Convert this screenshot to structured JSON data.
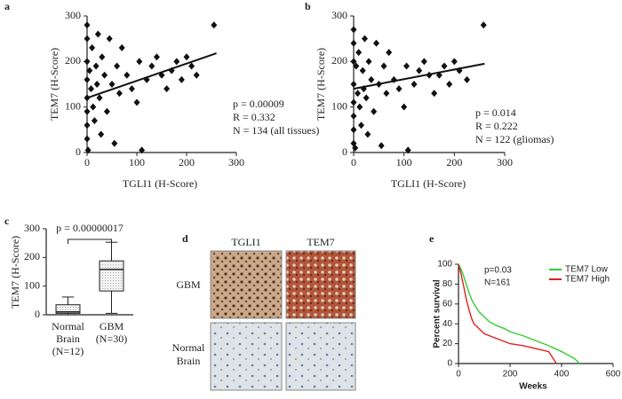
{
  "chart_data": [
    {
      "type": "scatter",
      "label": "a",
      "xlabel": "TGLI1 (H-Score)",
      "ylabel": "TEM7 (H-Score)",
      "xlim": [
        0,
        300
      ],
      "ylim": [
        0,
        300
      ],
      "xticks": [
        0,
        100,
        200,
        300
      ],
      "yticks": [
        0,
        100,
        200,
        300
      ],
      "annotations": [
        "p = 0.00009",
        "R = 0.332",
        "N = 134 (all tissues)"
      ],
      "x": [
        0,
        0,
        0,
        0,
        0,
        0,
        0,
        0,
        2,
        5,
        8,
        10,
        12,
        15,
        18,
        20,
        22,
        25,
        28,
        30,
        35,
        40,
        45,
        50,
        55,
        60,
        65,
        70,
        80,
        90,
        100,
        105,
        110,
        120,
        130,
        140,
        150,
        160,
        170,
        180,
        190,
        200,
        210,
        220,
        255
      ],
      "y": [
        280,
        250,
        200,
        160,
        120,
        90,
        60,
        30,
        5,
        180,
        140,
        230,
        100,
        70,
        190,
        150,
        260,
        120,
        40,
        210,
        170,
        90,
        250,
        150,
        20,
        190,
        130,
        230,
        170,
        140,
        110,
        200,
        5,
        160,
        190,
        210,
        170,
        140,
        180,
        200,
        160,
        210,
        190,
        170,
        280
      ],
      "fit": {
        "x": [
          0,
          260
        ],
        "y": [
          120,
          218
        ]
      }
    },
    {
      "type": "scatter",
      "label": "b",
      "xlabel": "TGLI1 (H-Score)",
      "ylabel": "TEM7 (H-Score)",
      "xlim": [
        0,
        300
      ],
      "ylim": [
        0,
        300
      ],
      "xticks": [
        0,
        100,
        200,
        300
      ],
      "yticks": [
        0,
        100,
        200,
        300
      ],
      "annotations": [
        "p = 0.014",
        "R = 0.222",
        "N = 122 (gliomas)"
      ],
      "x": [
        0,
        0,
        0,
        0,
        0,
        0,
        0,
        0,
        3,
        5,
        8,
        10,
        12,
        15,
        18,
        20,
        22,
        25,
        28,
        30,
        35,
        40,
        45,
        50,
        55,
        60,
        65,
        70,
        80,
        90,
        100,
        105,
        108,
        120,
        130,
        140,
        150,
        160,
        170,
        180,
        190,
        200,
        210,
        225,
        258
      ],
      "y": [
        270,
        240,
        200,
        150,
        110,
        80,
        50,
        20,
        10,
        190,
        130,
        220,
        100,
        60,
        180,
        140,
        250,
        120,
        40,
        200,
        160,
        90,
        240,
        150,
        15,
        190,
        130,
        220,
        160,
        140,
        100,
        190,
        5,
        150,
        180,
        200,
        170,
        130,
        170,
        190,
        150,
        200,
        180,
        160,
        280
      ],
      "fit": {
        "x": [
          0,
          260
        ],
        "y": [
          140,
          195
        ]
      }
    },
    {
      "type": "box",
      "label": "c",
      "ylabel": "TEM7 (H-Score)",
      "annotations": [
        "p = 0.00000017"
      ],
      "categories": [
        [
          "Normal",
          "Brain",
          "(N=12)"
        ],
        [
          "GBM",
          "(N=30)"
        ]
      ],
      "ylim": [
        0,
        300
      ],
      "yticks": [
        0,
        100,
        200,
        300
      ],
      "min": [
        0,
        5
      ],
      "q1": [
        5,
        83
      ],
      "median": [
        10,
        158
      ],
      "q3": [
        35,
        188
      ],
      "max": [
        62,
        253
      ]
    },
    {
      "type": "line",
      "label": "e",
      "xlabel": "Weeks",
      "ylabel": "Percent survival",
      "annotations": [
        "p=0.03",
        "N=161"
      ],
      "xlim": [
        0,
        600
      ],
      "ylim": [
        0,
        100
      ],
      "xticks": [
        0,
        200,
        400,
        600
      ],
      "yticks": [
        0,
        20,
        40,
        60,
        80,
        100
      ],
      "series": [
        {
          "name": "TEM7 Low",
          "color": "#33cc33",
          "x": [
            0,
            10,
            20,
            30,
            40,
            50,
            60,
            80,
            100,
            120,
            150,
            180,
            200,
            250,
            300,
            350,
            400,
            450,
            470
          ],
          "values": [
            100,
            95,
            88,
            80,
            72,
            65,
            60,
            52,
            47,
            42,
            38,
            35,
            32,
            28,
            23,
            18,
            12,
            5,
            0
          ]
        },
        {
          "name": "TEM7 High",
          "color": "#e02020",
          "x": [
            0,
            10,
            20,
            30,
            40,
            50,
            60,
            80,
            100,
            150,
            200,
            250,
            300,
            350,
            380
          ],
          "values": [
            100,
            90,
            78,
            65,
            55,
            46,
            40,
            35,
            30,
            25,
            20,
            18,
            15,
            12,
            0
          ]
        }
      ]
    }
  ],
  "images": {
    "label": "d",
    "columns": [
      "TGLI1",
      "TEM7"
    ],
    "rows": [
      [
        "GBM"
      ],
      [
        "Normal",
        "Brain"
      ]
    ]
  }
}
